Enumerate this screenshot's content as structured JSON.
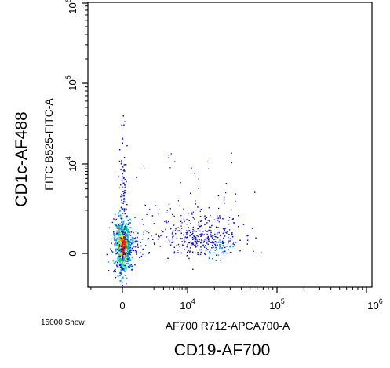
{
  "chart_data": {
    "type": "scatter",
    "subtype": "flow-cytometry-density-dot-plot",
    "title": "",
    "outer_xlabel": "CD19-AF700",
    "outer_ylabel": "CD1c-AF488",
    "xlabel": "AF700 R712-APCA700-A",
    "ylabel": "FITC B525-FITC-A",
    "event_count_label": "15000 Show",
    "x_scale": "biexponential",
    "y_scale": "biexponential",
    "x_ticks": [
      {
        "base": "0",
        "exp": "",
        "value": 0
      },
      {
        "base": "10",
        "exp": "4",
        "value": 10000
      },
      {
        "base": "10",
        "exp": "5",
        "value": 100000
      },
      {
        "base": "10",
        "exp": "6",
        "value": 1000000
      }
    ],
    "y_ticks": [
      {
        "base": "0",
        "exp": "",
        "value": 0
      },
      {
        "base": "10",
        "exp": "4",
        "value": 10000
      },
      {
        "base": "10",
        "exp": "5",
        "value": 100000
      },
      {
        "base": "10",
        "exp": "6",
        "value": 1000000
      }
    ],
    "xlim": [
      -4000,
      1000000
    ],
    "ylim": [
      -4000,
      1000000
    ],
    "grid": false,
    "legend": "none",
    "colors": {
      "sparse": "#1010d0",
      "low": "#00a0ff",
      "mid": "#00e070",
      "high": "#ffe000",
      "peak": "#ff2000"
    },
    "populations": [
      {
        "x": 0,
        "y": 0,
        "description_free": true,
        "spread_x": 700,
        "spread_y": 1400,
        "density": "very high"
      },
      {
        "x": 14000,
        "y": 1000,
        "spread_x": 9000,
        "spread_y": 2500,
        "density": "sparse"
      }
    ]
  }
}
